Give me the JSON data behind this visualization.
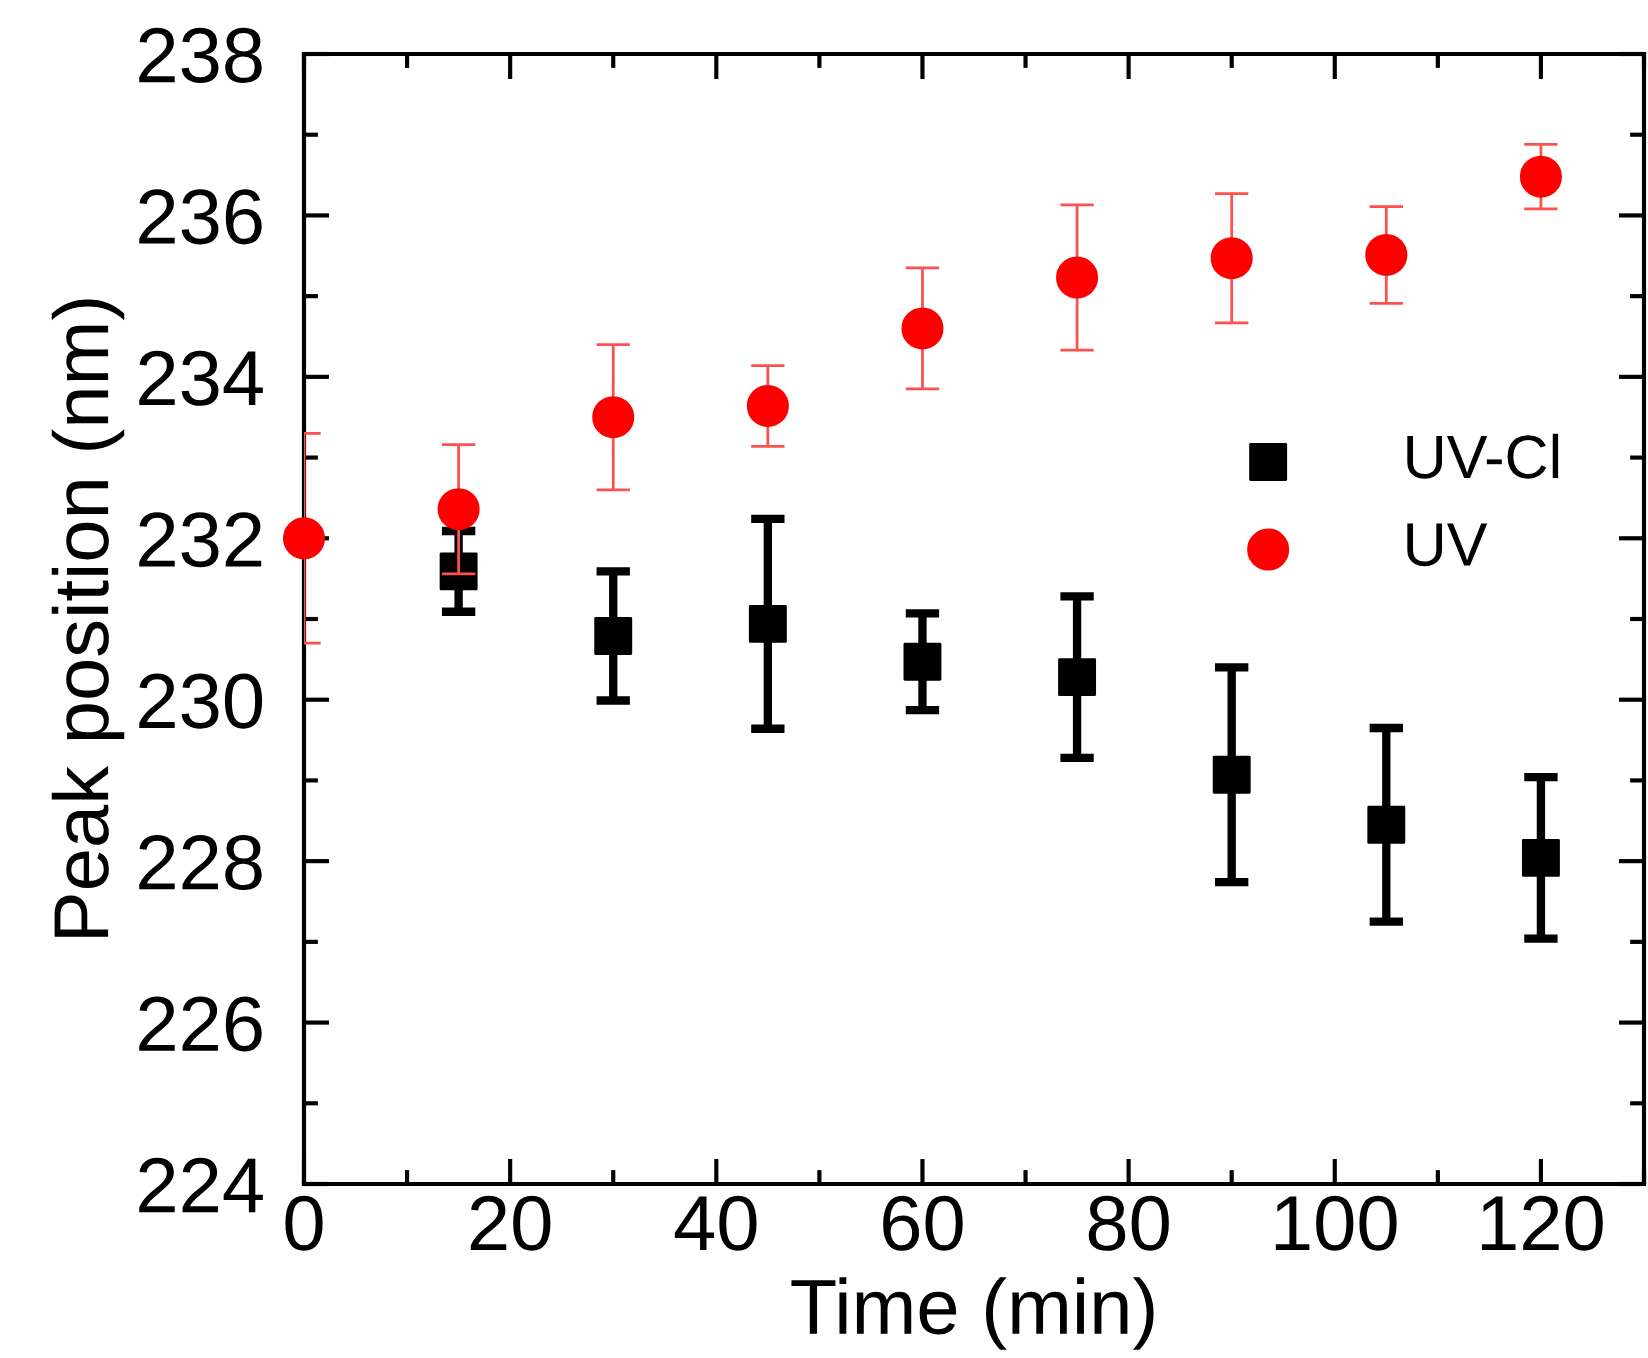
{
  "chart_data": {
    "type": "scatter",
    "xlabel": "Time (min)",
    "ylabel": "Peak position (nm)",
    "x": [
      0,
      15,
      30,
      45,
      60,
      75,
      90,
      105,
      120
    ],
    "series": [
      {
        "name": "UV-Cl",
        "color": "#000000",
        "marker": "square",
        "values": [
          null,
          231.59,
          230.79,
          230.94,
          230.47,
          230.28,
          229.07,
          228.45,
          228.04
        ],
        "errors": [
          null,
          0.5,
          0.8,
          1.3,
          0.6,
          1.0,
          1.33,
          1.2,
          1.0
        ]
      },
      {
        "name": "UV",
        "color": "#ff0000",
        "marker": "circle",
        "values": [
          232.0,
          232.36,
          233.5,
          233.64,
          234.6,
          235.23,
          235.47,
          235.51,
          236.48
        ],
        "errors": [
          1.3,
          0.8,
          0.9,
          0.5,
          0.75,
          0.9,
          0.8,
          0.6,
          0.4
        ]
      }
    ],
    "xlim": [
      0,
      130
    ],
    "ylim": [
      224,
      238
    ],
    "xticks": [
      0,
      20,
      40,
      60,
      80,
      100,
      120
    ],
    "yticks": [
      224,
      226,
      228,
      230,
      232,
      234,
      236,
      238
    ],
    "grid": false,
    "legend": "right"
  }
}
